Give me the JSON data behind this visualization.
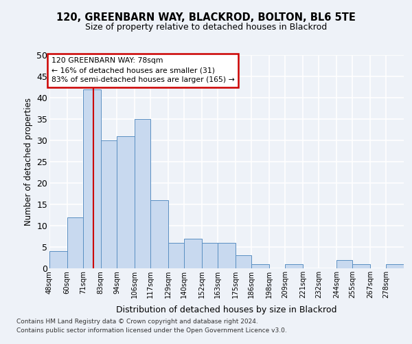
{
  "title1": "120, GREENBARN WAY, BLACKROD, BOLTON, BL6 5TE",
  "title2": "Size of property relative to detached houses in Blackrod",
  "xlabel": "Distribution of detached houses by size in Blackrod",
  "ylabel": "Number of detached properties",
  "bin_labels": [
    "48sqm",
    "60sqm",
    "71sqm",
    "83sqm",
    "94sqm",
    "106sqm",
    "117sqm",
    "129sqm",
    "140sqm",
    "152sqm",
    "163sqm",
    "175sqm",
    "186sqm",
    "198sqm",
    "209sqm",
    "221sqm",
    "232sqm",
    "244sqm",
    "255sqm",
    "267sqm",
    "278sqm"
  ],
  "bin_edges": [
    48,
    60,
    71,
    83,
    94,
    106,
    117,
    129,
    140,
    152,
    163,
    175,
    186,
    198,
    209,
    221,
    232,
    244,
    255,
    267,
    278,
    290
  ],
  "values": [
    4,
    12,
    42,
    30,
    31,
    35,
    16,
    6,
    7,
    6,
    6,
    3,
    1,
    0,
    1,
    0,
    0,
    2,
    1,
    0,
    1
  ],
  "bar_color": "#c8d9ef",
  "bar_edge_color": "#5a8fc2",
  "red_line_x": 78,
  "annotation_title": "120 GREENBARN WAY: 78sqm",
  "annotation_line1": "← 16% of detached houses are smaller (31)",
  "annotation_line2": "83% of semi-detached houses are larger (165) →",
  "annotation_box_color": "#ffffff",
  "annotation_box_edge": "#cc0000",
  "red_line_color": "#cc0000",
  "ylim": [
    0,
    50
  ],
  "yticks": [
    0,
    5,
    10,
    15,
    20,
    25,
    30,
    35,
    40,
    45,
    50
  ],
  "footer1": "Contains HM Land Registry data © Crown copyright and database right 2024.",
  "footer2": "Contains public sector information licensed under the Open Government Licence v3.0.",
  "bg_color": "#eef2f8",
  "grid_color": "#ffffff"
}
